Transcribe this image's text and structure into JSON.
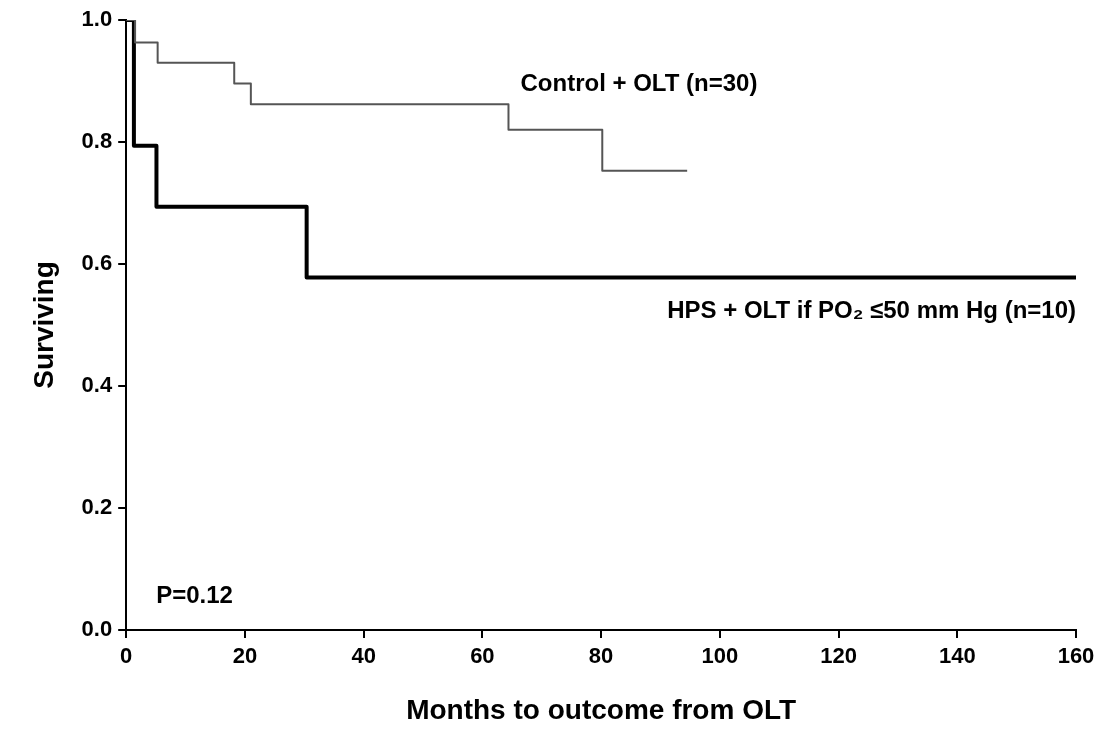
{
  "chart_data": {
    "type": "step",
    "xlabel": "Months to outcome from OLT",
    "ylabel": "Surviving",
    "xlim": [
      0,
      160
    ],
    "xticks": [
      0,
      20,
      40,
      60,
      80,
      100,
      120,
      140,
      160
    ],
    "ylim": [
      0,
      1
    ],
    "yticks": [
      {
        "value": 0,
        "label": "0.0"
      },
      {
        "value": 0.2,
        "label": "0.2"
      },
      {
        "value": 0.4,
        "label": "0.4"
      },
      {
        "value": 0.6,
        "label": "0.6"
      },
      {
        "value": 0.8,
        "label": "0.8"
      },
      {
        "value": 1,
        "label": "1.0"
      }
    ],
    "grid": false,
    "legend": false,
    "marker": "none",
    "line_style": "solid",
    "series": [
      {
        "name": "Control + OLT (n=30)",
        "color": "#555555",
        "x": [
          0,
          1.5,
          5.3,
          18.2,
          21,
          64.4,
          80.2,
          94.5
        ],
        "values": [
          1,
          0.963,
          0.93,
          0.896,
          0.862,
          0.82,
          0.753,
          0.753
        ]
      },
      {
        "name": "HPS + OLT if PO₂ ≤50 mm Hg (n=10)",
        "color": "#000000",
        "x": [
          0,
          1.3,
          5.1,
          30.4,
          160
        ],
        "values": [
          1,
          0.794,
          0.694,
          0.578,
          0.578
        ]
      }
    ],
    "annotations": [
      "P=0.12"
    ]
  }
}
